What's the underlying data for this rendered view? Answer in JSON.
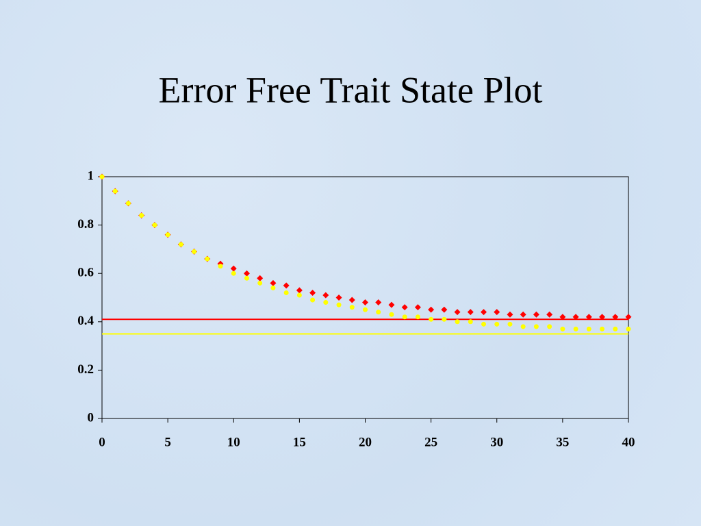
{
  "chart_data": {
    "type": "scatter",
    "title": "Error Free Trait State Plot",
    "x": [
      0,
      1,
      2,
      3,
      4,
      5,
      6,
      7,
      8,
      9,
      10,
      11,
      12,
      13,
      14,
      15,
      16,
      17,
      18,
      19,
      20,
      21,
      22,
      23,
      24,
      25,
      26,
      27,
      28,
      29,
      30,
      31,
      32,
      33,
      34,
      35,
      36,
      37,
      38,
      39,
      40
    ],
    "series": [
      {
        "color": "#ff0000",
        "marker": "diamond",
        "values": [
          1.0,
          0.94,
          0.89,
          0.84,
          0.8,
          0.76,
          0.72,
          0.69,
          0.66,
          0.64,
          0.62,
          0.6,
          0.58,
          0.56,
          0.55,
          0.53,
          0.52,
          0.51,
          0.5,
          0.49,
          0.48,
          0.48,
          0.47,
          0.46,
          0.46,
          0.45,
          0.45,
          0.44,
          0.44,
          0.44,
          0.44,
          0.43,
          0.43,
          0.43,
          0.43,
          0.42,
          0.42,
          0.42,
          0.42,
          0.42,
          0.42
        ]
      },
      {
        "color": "#ffff00",
        "marker": "circle",
        "values": [
          1.0,
          0.94,
          0.89,
          0.84,
          0.8,
          0.76,
          0.72,
          0.69,
          0.66,
          0.63,
          0.6,
          0.58,
          0.56,
          0.54,
          0.52,
          0.51,
          0.49,
          0.48,
          0.47,
          0.46,
          0.45,
          0.44,
          0.43,
          0.42,
          0.42,
          0.41,
          0.41,
          0.4,
          0.4,
          0.39,
          0.39,
          0.39,
          0.38,
          0.38,
          0.38,
          0.37,
          0.37,
          0.37,
          0.37,
          0.37,
          0.37
        ]
      }
    ],
    "reference_lines": [
      {
        "value": 0.41,
        "color": "#ff0000"
      },
      {
        "value": 0.35,
        "color": "#ffff00"
      }
    ],
    "xlim": [
      0,
      40
    ],
    "xticks": [
      0,
      5,
      10,
      15,
      20,
      25,
      30,
      35,
      40
    ],
    "ylim": [
      0,
      1
    ],
    "yticks": [
      0,
      0.2,
      0.4,
      0.6,
      0.8,
      1
    ],
    "grid": false
  }
}
